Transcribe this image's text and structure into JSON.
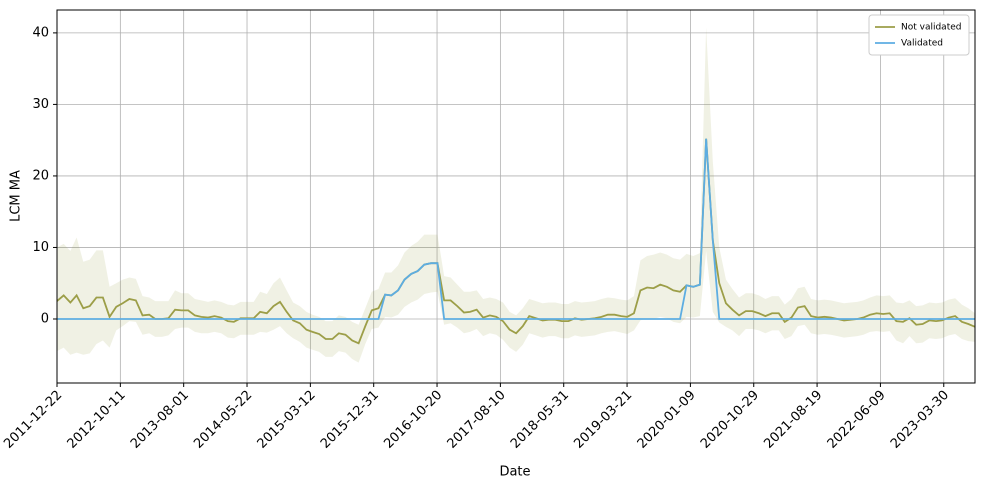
{
  "chart_data": {
    "type": "line",
    "xlabel": "Date",
    "ylabel": "LCM MA",
    "x": [
      "2011-12-22",
      "2012-01-22",
      "2012-02-22",
      "2012-03-22",
      "2012-04-22",
      "2012-05-22",
      "2012-06-22",
      "2012-07-22",
      "2012-08-22",
      "2012-09-22",
      "2012-10-22",
      "2012-11-22",
      "2012-12-22",
      "2013-01-22",
      "2013-02-22",
      "2013-03-22",
      "2013-04-22",
      "2013-05-22",
      "2013-06-22",
      "2013-07-22",
      "2013-08-22",
      "2013-09-22",
      "2013-10-22",
      "2013-11-22",
      "2013-12-22",
      "2014-01-22",
      "2014-02-22",
      "2014-03-22",
      "2014-04-22",
      "2014-05-22",
      "2014-06-22",
      "2014-07-22",
      "2014-08-22",
      "2014-09-22",
      "2014-10-22",
      "2014-11-22",
      "2014-12-22",
      "2015-01-22",
      "2015-02-22",
      "2015-03-22",
      "2015-04-22",
      "2015-05-22",
      "2015-06-22",
      "2015-07-22",
      "2015-08-22",
      "2015-09-22",
      "2015-10-22",
      "2015-11-22",
      "2015-12-22",
      "2016-01-22",
      "2016-02-22",
      "2016-03-22",
      "2016-04-22",
      "2016-05-22",
      "2016-06-22",
      "2016-07-22",
      "2016-08-22",
      "2016-09-22",
      "2016-10-22",
      "2016-11-22",
      "2016-12-22",
      "2017-01-22",
      "2017-02-22",
      "2017-03-22",
      "2017-04-22",
      "2017-05-22",
      "2017-06-22",
      "2017-07-22",
      "2017-08-22",
      "2017-09-22",
      "2017-10-22",
      "2017-11-22",
      "2017-12-22",
      "2018-01-22",
      "2018-02-22",
      "2018-03-22",
      "2018-04-22",
      "2018-05-22",
      "2018-06-22",
      "2018-07-22",
      "2018-08-22",
      "2018-09-22",
      "2018-10-22",
      "2018-11-22",
      "2018-12-22",
      "2019-01-22",
      "2019-02-22",
      "2019-03-22",
      "2019-04-22",
      "2019-05-22",
      "2019-06-22",
      "2019-07-22",
      "2019-08-22",
      "2019-09-22",
      "2019-10-22",
      "2019-11-22",
      "2019-12-22",
      "2020-01-22",
      "2020-02-22",
      "2020-03-22",
      "2020-04-22",
      "2020-05-22",
      "2020-06-22",
      "2020-07-22",
      "2020-08-22",
      "2020-09-22",
      "2020-10-22",
      "2020-11-22",
      "2020-12-22",
      "2021-01-22",
      "2021-02-22",
      "2021-03-22",
      "2021-04-22",
      "2021-05-22",
      "2021-06-22",
      "2021-07-22",
      "2021-08-22",
      "2021-09-22",
      "2021-10-22",
      "2021-11-22",
      "2021-12-22",
      "2022-01-22",
      "2022-02-22",
      "2022-03-22",
      "2022-04-22",
      "2022-05-22",
      "2022-06-22",
      "2022-07-22",
      "2022-08-22",
      "2022-09-22",
      "2022-10-22",
      "2022-11-22",
      "2022-12-22",
      "2023-01-22",
      "2023-02-22",
      "2023-03-22",
      "2023-04-22",
      "2023-05-22",
      "2023-06-22",
      "2023-07-22",
      "2023-08-22"
    ],
    "series": [
      {
        "name": "Not validated",
        "color": "#9c9e48",
        "band_color": "rgba(156,158,72,0.15)",
        "values": [
          2.5,
          3.3,
          2.3,
          3.3,
          1.5,
          1.8,
          3.0,
          3.0,
          0.3,
          1.7,
          2.2,
          2.8,
          2.6,
          0.5,
          0.6,
          0,
          0,
          0.1,
          1.3,
          1.2,
          1.2,
          0.5,
          0.3,
          0.2,
          0.4,
          0.2,
          -0.3,
          -0.4,
          0.1,
          0.1,
          0.1,
          1.0,
          0.8,
          1.8,
          2.4,
          1.0,
          -0.2,
          -0.6,
          -1.5,
          -1.8,
          -2.1,
          -2.8,
          -2.8,
          -2.0,
          -2.2,
          -3.0,
          -3.4,
          -1.0,
          1.2,
          1.5,
          3.4,
          3.3,
          4.0,
          5.5,
          6.3,
          6.7,
          7.6,
          7.8,
          7.8,
          2.6,
          2.6,
          1.8,
          0.9,
          1.0,
          1.3,
          0.2,
          0.5,
          0.3,
          -0.3,
          -1.5,
          -2.0,
          -1.0,
          0.4,
          0.1,
          -0.2,
          -0.1,
          -0.1,
          -0.3,
          -0.3,
          0.1,
          -0.1,
          0,
          0.1,
          0.3,
          0.6,
          0.6,
          0.4,
          0.3,
          0.8,
          4.0,
          4.4,
          4.3,
          4.8,
          4.5,
          4.0,
          3.8,
          4.7,
          4.5,
          4.8,
          25.2,
          11,
          5.0,
          2.2,
          1.3,
          0.5,
          1.1,
          1.1,
          0.8,
          0.4,
          0.8,
          0.8,
          -0.4,
          0.2,
          1.6,
          1.8,
          0.4,
          0.2,
          0.3,
          0.2,
          0,
          -0.2,
          -0.1,
          0,
          0.2,
          0.6,
          0.8,
          0.7,
          0.8,
          -0.3,
          -0.4,
          0.1,
          -0.8,
          -0.7,
          -0.2,
          -0.3,
          -0.2,
          0.2,
          0.4,
          -0.4,
          -0.7,
          -1.1
        ],
        "upper": [
          10,
          10.5,
          9.5,
          11.4,
          8,
          8.3,
          9.6,
          9.6,
          4.5,
          5,
          5.5,
          5.8,
          5.6,
          3.2,
          3,
          2.5,
          2.5,
          2.5,
          4,
          3.6,
          3.6,
          2.8,
          2.6,
          2.4,
          2.6,
          2.4,
          2,
          1.9,
          2.4,
          2.4,
          2.4,
          3.8,
          3.5,
          5,
          5.8,
          4,
          2.3,
          1.8,
          1,
          0.6,
          0.3,
          -0.3,
          -0.3,
          0.5,
          0.3,
          -0.4,
          -0.8,
          1.5,
          3.8,
          4.2,
          6.5,
          6.5,
          7.5,
          9.3,
          10.2,
          10.8,
          11.8,
          11.8,
          11.8,
          6,
          5.8,
          4.8,
          3.8,
          3.8,
          4,
          2.8,
          3,
          2.8,
          2.3,
          1,
          0.5,
          1.5,
          2.8,
          2.5,
          2.2,
          2.3,
          2.3,
          2.1,
          2.1,
          2.5,
          2.3,
          2.4,
          2.5,
          2.8,
          3,
          2.9,
          2.7,
          2.6,
          3.2,
          8.2,
          8.8,
          9,
          9.3,
          9,
          8.5,
          8.3,
          9.1,
          8.8,
          9.2,
          40.8,
          22,
          10,
          5.5,
          4.2,
          3,
          3.6,
          3.6,
          3.3,
          2.8,
          3.2,
          3.2,
          2,
          2.8,
          4.3,
          4.5,
          2.8,
          2.6,
          2.7,
          2.6,
          2.4,
          2.2,
          2.3,
          2.4,
          2.6,
          3,
          3.3,
          3.2,
          3.3,
          2.3,
          2.2,
          2.6,
          1.8,
          1.9,
          2.3,
          2.2,
          2.3,
          2.7,
          2.9,
          2,
          1.5,
          0.8
        ],
        "lower": [
          -4.5,
          -4,
          -5,
          -4.7,
          -5,
          -4.8,
          -3.5,
          -3,
          -4,
          -1.6,
          -1,
          -0.3,
          -0.4,
          -2.2,
          -2,
          -2.5,
          -2.5,
          -2.3,
          -1.4,
          -1.2,
          -1.2,
          -1.8,
          -2,
          -2,
          -1.8,
          -2,
          -2.6,
          -2.7,
          -2.2,
          -2.2,
          -2.2,
          -1.8,
          -1.9,
          -1.5,
          -1,
          -2,
          -2.7,
          -3.2,
          -4,
          -4.3,
          -4.6,
          -5.3,
          -5.3,
          -4.5,
          -4.7,
          -5.6,
          -6.1,
          -3.5,
          -1.4,
          -1.2,
          0.3,
          0.2,
          0.6,
          1.7,
          2.3,
          2.7,
          3.5,
          3.7,
          3.8,
          -0.8,
          -0.6,
          -1.2,
          -2,
          -1.8,
          -1.4,
          -2.4,
          -2,
          -2.2,
          -2.9,
          -4,
          -4.6,
          -3.6,
          -2,
          -2.3,
          -2.6,
          -2.4,
          -2.4,
          -2.7,
          -2.7,
          -2.3,
          -2.5,
          -2.4,
          -2.3,
          -2,
          -1.8,
          -1.7,
          -1.9,
          -2.1,
          -1.6,
          -0.2,
          0.1,
          0,
          0.3,
          0.1,
          -0.4,
          -0.6,
          0.3,
          0.2,
          0.4,
          9.5,
          1,
          -0.5,
          -1.1,
          -1.6,
          -2.4,
          -1.4,
          -1.4,
          -1.6,
          -2,
          -1.6,
          -1.6,
          -2.8,
          -2.4,
          -1,
          -0.8,
          -2,
          -2.2,
          -2.1,
          -2.2,
          -2.4,
          -2.6,
          -2.5,
          -2.4,
          -2.2,
          -1.8,
          -1.7,
          -1.8,
          -1.7,
          -3,
          -3.4,
          -2.4,
          -3.4,
          -3.3,
          -2.7,
          -2.8,
          -2.7,
          -2.3,
          -2.1,
          -2.8,
          -3.1,
          -3.2
        ]
      },
      {
        "name": "Validated",
        "color": "#5dade2",
        "values": [
          0,
          0,
          0,
          0,
          0,
          0,
          0,
          0,
          0,
          0,
          0,
          0,
          0,
          0,
          0,
          0,
          0,
          0,
          0,
          0,
          0,
          0,
          0,
          0,
          0,
          0,
          0,
          0,
          0,
          0,
          0,
          0,
          0,
          0,
          0,
          0,
          0,
          0,
          0,
          0,
          0,
          0,
          0,
          0,
          0,
          0,
          0,
          0,
          0,
          0,
          3.4,
          3.3,
          4.0,
          5.5,
          6.3,
          6.7,
          7.6,
          7.8,
          7.8,
          0,
          0,
          0,
          0,
          0,
          0,
          0,
          0,
          0,
          0,
          0,
          0,
          0,
          0,
          0,
          0,
          0,
          0,
          0,
          0,
          0,
          0,
          0,
          0,
          0,
          0,
          0,
          0,
          0,
          0,
          0,
          0,
          0,
          0,
          0,
          0,
          0,
          4.7,
          4.5,
          4.8,
          25.2,
          11,
          0,
          0,
          0,
          0,
          0,
          0,
          0,
          0,
          0,
          0,
          0,
          0,
          0,
          0,
          0,
          0,
          0,
          0,
          0,
          0,
          0,
          0,
          0,
          0,
          0,
          0,
          0,
          0,
          0,
          0,
          0,
          0,
          0,
          0,
          0,
          0,
          0,
          0,
          0,
          0
        ]
      }
    ],
    "xlim": [
      "2011-12-22",
      "2023-08-22"
    ],
    "xticks": [
      "2011-12-22",
      "2012-10-11",
      "2013-08-01",
      "2014-05-22",
      "2015-03-12",
      "2015-12-31",
      "2016-10-20",
      "2017-08-10",
      "2018-05-31",
      "2019-03-21",
      "2020-01-09",
      "2020-10-29",
      "2021-08-19",
      "2022-06-09",
      "2023-03-30"
    ],
    "ylim": [
      -8.95,
      43.2
    ],
    "yticks": [
      0,
      10,
      20,
      30,
      40
    ],
    "grid": true,
    "legend": "upper right"
  }
}
